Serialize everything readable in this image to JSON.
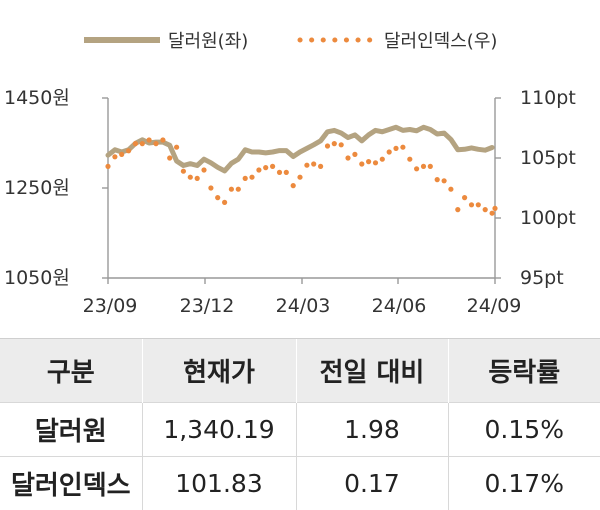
{
  "chart_data": {
    "type": "line",
    "title": "",
    "x_ticks": [
      "23/09",
      "23/12",
      "24/03",
      "24/06",
      "24/09"
    ],
    "y_left_ticks": [
      "1450원",
      "1250원",
      "1050원"
    ],
    "y_right_ticks": [
      "110pt",
      "105pt",
      "100pt",
      "95pt"
    ],
    "y_left_lim": [
      1050,
      1450
    ],
    "y_right_lim": [
      95,
      110
    ],
    "x_range": [
      "2023-09-01",
      "2024-09-30"
    ],
    "legend_position": "top",
    "series": [
      {
        "name": "달러원(좌)",
        "axis": "left",
        "style": "solid",
        "color": "#b4a381",
        "points": [
          [
            "2023-09-01",
            1323
          ],
          [
            "2023-09-08",
            1335
          ],
          [
            "2023-09-15",
            1330
          ],
          [
            "2023-09-22",
            1335
          ],
          [
            "2023-09-29",
            1349
          ],
          [
            "2023-10-06",
            1357
          ],
          [
            "2023-10-13",
            1350
          ],
          [
            "2023-10-20",
            1352
          ],
          [
            "2023-10-27",
            1352
          ],
          [
            "2023-11-03",
            1345
          ],
          [
            "2023-11-10",
            1310
          ],
          [
            "2023-11-17",
            1300
          ],
          [
            "2023-11-24",
            1304
          ],
          [
            "2023-12-01",
            1300
          ],
          [
            "2023-12-08",
            1314
          ],
          [
            "2023-12-15",
            1306
          ],
          [
            "2023-12-22",
            1296
          ],
          [
            "2023-12-29",
            1288
          ],
          [
            "2024-01-05",
            1305
          ],
          [
            "2024-01-12",
            1314
          ],
          [
            "2024-01-19",
            1335
          ],
          [
            "2024-01-26",
            1330
          ],
          [
            "2024-02-02",
            1330
          ],
          [
            "2024-02-09",
            1328
          ],
          [
            "2024-02-16",
            1330
          ],
          [
            "2024-02-23",
            1333
          ],
          [
            "2024-03-01",
            1333
          ],
          [
            "2024-03-08",
            1320
          ],
          [
            "2024-03-15",
            1330
          ],
          [
            "2024-03-22",
            1338
          ],
          [
            "2024-03-29",
            1346
          ],
          [
            "2024-04-05",
            1355
          ],
          [
            "2024-04-12",
            1375
          ],
          [
            "2024-04-19",
            1378
          ],
          [
            "2024-04-26",
            1372
          ],
          [
            "2024-05-03",
            1362
          ],
          [
            "2024-05-10",
            1368
          ],
          [
            "2024-05-17",
            1355
          ],
          [
            "2024-05-24",
            1368
          ],
          [
            "2024-05-31",
            1378
          ],
          [
            "2024-06-07",
            1375
          ],
          [
            "2024-06-14",
            1380
          ],
          [
            "2024-06-21",
            1385
          ],
          [
            "2024-06-28",
            1378
          ],
          [
            "2024-07-05",
            1380
          ],
          [
            "2024-07-12",
            1377
          ],
          [
            "2024-07-19",
            1385
          ],
          [
            "2024-07-26",
            1380
          ],
          [
            "2024-08-02",
            1370
          ],
          [
            "2024-08-09",
            1372
          ],
          [
            "2024-08-16",
            1358
          ],
          [
            "2024-08-23",
            1335
          ],
          [
            "2024-08-30",
            1336
          ],
          [
            "2024-09-06",
            1339
          ],
          [
            "2024-09-13",
            1336
          ],
          [
            "2024-09-20",
            1334
          ],
          [
            "2024-09-27",
            1340
          ]
        ]
      },
      {
        "name": "달러인덱스(우)",
        "axis": "right",
        "style": "dotted",
        "color": "#ec8a3e",
        "points": [
          [
            "2023-09-01",
            104.3
          ],
          [
            "2023-09-08",
            105.1
          ],
          [
            "2023-09-15",
            105.3
          ],
          [
            "2023-09-22",
            105.6
          ],
          [
            "2023-09-29",
            106.2
          ],
          [
            "2023-10-06",
            106.2
          ],
          [
            "2023-10-13",
            106.5
          ],
          [
            "2023-10-20",
            106.2
          ],
          [
            "2023-10-27",
            106.5
          ],
          [
            "2023-11-03",
            105.0
          ],
          [
            "2023-11-10",
            105.9
          ],
          [
            "2023-11-17",
            103.9
          ],
          [
            "2023-11-24",
            103.4
          ],
          [
            "2023-12-01",
            103.3
          ],
          [
            "2023-12-08",
            104.0
          ],
          [
            "2023-12-15",
            102.5
          ],
          [
            "2023-12-22",
            101.7
          ],
          [
            "2023-12-29",
            101.3
          ],
          [
            "2024-01-05",
            102.4
          ],
          [
            "2024-01-12",
            102.4
          ],
          [
            "2024-01-19",
            103.3
          ],
          [
            "2024-01-26",
            103.4
          ],
          [
            "2024-02-02",
            104.0
          ],
          [
            "2024-02-09",
            104.2
          ],
          [
            "2024-02-16",
            104.3
          ],
          [
            "2024-02-23",
            103.8
          ],
          [
            "2024-03-01",
            103.8
          ],
          [
            "2024-03-08",
            102.7
          ],
          [
            "2024-03-15",
            103.4
          ],
          [
            "2024-03-22",
            104.4
          ],
          [
            "2024-03-29",
            104.5
          ],
          [
            "2024-04-05",
            104.3
          ],
          [
            "2024-04-12",
            106.0
          ],
          [
            "2024-04-19",
            106.2
          ],
          [
            "2024-04-26",
            106.1
          ],
          [
            "2024-05-03",
            105.0
          ],
          [
            "2024-05-10",
            105.3
          ],
          [
            "2024-05-17",
            104.5
          ],
          [
            "2024-05-24",
            104.7
          ],
          [
            "2024-05-31",
            104.6
          ],
          [
            "2024-06-07",
            104.9
          ],
          [
            "2024-06-14",
            105.5
          ],
          [
            "2024-06-21",
            105.8
          ],
          [
            "2024-06-28",
            105.9
          ],
          [
            "2024-07-05",
            104.9
          ],
          [
            "2024-07-12",
            104.1
          ],
          [
            "2024-07-19",
            104.3
          ],
          [
            "2024-07-26",
            104.3
          ],
          [
            "2024-08-02",
            103.2
          ],
          [
            "2024-08-09",
            103.1
          ],
          [
            "2024-08-16",
            102.4
          ],
          [
            "2024-08-23",
            100.7
          ],
          [
            "2024-08-30",
            101.7
          ],
          [
            "2024-09-06",
            101.1
          ],
          [
            "2024-09-13",
            101.1
          ],
          [
            "2024-09-20",
            100.7
          ],
          [
            "2024-09-27",
            100.4
          ],
          [
            "2024-09-30",
            100.8
          ]
        ]
      }
    ]
  },
  "table": {
    "headers": [
      "구분",
      "현재가",
      "전일 대비",
      "등락률"
    ],
    "rows": [
      [
        "달러원",
        "1,340.19",
        "1.98",
        "0.15%"
      ],
      [
        "달러인덱스",
        "101.83",
        "0.17",
        "0.17%"
      ]
    ]
  }
}
